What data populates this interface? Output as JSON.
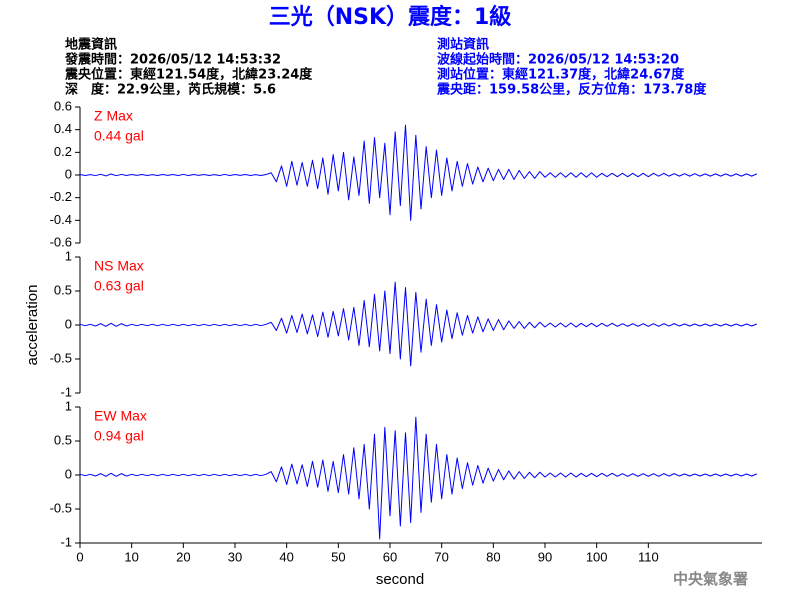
{
  "header": {
    "title": "三光（NSK）震度：1級",
    "quake_info": [
      "地震資訊",
      "發震時間：2026/05/12 14:53:32",
      "震央位置：東經121.54度，北緯23.24度",
      "深　度：22.9公里，芮氏規模：5.6"
    ],
    "station_info": [
      "測站資訊",
      "波線起始時間：2026/05/12 14:53:20",
      "測站位置：東經121.37度，北緯24.67度",
      "震央距：159.58公里，反方位角：173.78度"
    ],
    "footer": "中央氣象署"
  },
  "chart_data": {
    "type": "line",
    "xlabel": "second",
    "ylabel": "acceleration",
    "xlim": [
      0,
      132
    ],
    "xticks": [
      0,
      10,
      20,
      30,
      40,
      50,
      60,
      70,
      80,
      90,
      100,
      110
    ],
    "x": [
      0,
      1,
      2,
      3,
      4,
      5,
      6,
      7,
      8,
      9,
      10,
      11,
      12,
      13,
      14,
      15,
      16,
      17,
      18,
      19,
      20,
      21,
      22,
      23,
      24,
      25,
      26,
      27,
      28,
      29,
      30,
      31,
      32,
      33,
      34,
      35,
      36,
      37,
      38,
      39,
      40,
      41,
      42,
      43,
      44,
      45,
      46,
      47,
      48,
      49,
      50,
      51,
      52,
      53,
      54,
      55,
      56,
      57,
      58,
      59,
      60,
      61,
      62,
      63,
      64,
      65,
      66,
      67,
      68,
      69,
      70,
      71,
      72,
      73,
      74,
      75,
      76,
      77,
      78,
      79,
      80,
      81,
      82,
      83,
      84,
      85,
      86,
      87,
      88,
      89,
      90,
      91,
      92,
      93,
      94,
      95,
      96,
      97,
      98,
      99,
      100,
      101,
      102,
      103,
      104,
      105,
      106,
      107,
      108,
      109,
      110,
      111,
      112,
      113,
      114,
      115,
      116,
      117,
      118,
      119,
      120,
      121,
      122,
      123,
      124,
      125,
      126,
      127,
      128,
      129,
      130,
      131
    ],
    "series": [
      {
        "name": "Z Max",
        "max_label": "0.44 gal",
        "color": "#0000ff",
        "ylim": [
          -0.6,
          0.6
        ],
        "yticks": [
          -0.6,
          -0.4,
          -0.2,
          0,
          0.2,
          0.4,
          0.6
        ],
        "values": [
          0.004,
          -0.004,
          0.003,
          -0.005,
          0.006,
          -0.008,
          0.009,
          -0.006,
          0.005,
          -0.004,
          0.004,
          -0.003,
          0.004,
          -0.004,
          0.003,
          -0.004,
          0.004,
          -0.003,
          0.004,
          -0.004,
          0.005,
          -0.004,
          0.004,
          -0.003,
          0.004,
          -0.004,
          0.003,
          -0.004,
          0.005,
          -0.004,
          0.004,
          -0.003,
          0.004,
          -0.004,
          0.003,
          -0.004,
          0.004,
          0.02,
          -0.06,
          0.08,
          -0.1,
          0.12,
          -0.09,
          0.11,
          -0.1,
          0.13,
          -0.12,
          0.15,
          -0.17,
          0.18,
          -0.14,
          0.2,
          -0.22,
          0.16,
          -0.18,
          0.3,
          -0.25,
          0.33,
          -0.2,
          0.28,
          -0.35,
          0.38,
          -0.27,
          0.44,
          -0.4,
          0.35,
          -0.3,
          0.25,
          -0.2,
          0.22,
          -0.18,
          0.15,
          -0.14,
          0.12,
          -0.1,
          0.1,
          -0.08,
          0.07,
          -0.06,
          0.06,
          -0.05,
          0.05,
          -0.04,
          0.05,
          -0.04,
          0.04,
          -0.03,
          0.03,
          -0.03,
          0.03,
          -0.02,
          0.02,
          -0.02,
          0.02,
          -0.02,
          0.02,
          -0.02,
          0.02,
          -0.02,
          0.02,
          -0.02,
          0.015,
          -0.015,
          0.015,
          -0.015,
          0.015,
          -0.015,
          0.015,
          -0.015,
          0.015,
          -0.015,
          0.015,
          -0.01,
          0.015,
          -0.01,
          0.012,
          -0.01,
          0.012,
          -0.01,
          0.012,
          -0.01,
          0.01,
          -0.01,
          0.01,
          -0.01,
          0.01,
          -0.01,
          0.01,
          -0.01,
          0.01,
          -0.01,
          0.01
        ]
      },
      {
        "name": "NS Max",
        "max_label": "0.63 gal",
        "color": "#0000ff",
        "ylim": [
          -1,
          1
        ],
        "yticks": [
          -1,
          -0.5,
          0,
          0.5,
          1
        ],
        "values": [
          0.01,
          -0.01,
          0.01,
          -0.015,
          0.02,
          -0.02,
          0.025,
          -0.02,
          0.02,
          -0.015,
          0.01,
          -0.01,
          0.01,
          -0.01,
          0.01,
          -0.01,
          0.01,
          -0.01,
          0.01,
          -0.01,
          0.01,
          -0.01,
          0.01,
          -0.01,
          0.01,
          -0.01,
          0.01,
          -0.01,
          0.01,
          -0.01,
          0.01,
          -0.01,
          0.01,
          -0.01,
          0.01,
          -0.01,
          0.01,
          0.04,
          -0.08,
          0.1,
          -0.12,
          0.14,
          -0.11,
          0.16,
          -0.13,
          0.15,
          -0.17,
          0.19,
          -0.18,
          0.2,
          -0.16,
          0.24,
          -0.22,
          0.26,
          -0.3,
          0.36,
          -0.32,
          0.45,
          -0.38,
          0.5,
          -0.42,
          0.63,
          -0.5,
          0.55,
          -0.6,
          0.48,
          -0.4,
          0.38,
          -0.3,
          0.3,
          -0.25,
          0.22,
          -0.2,
          0.18,
          -0.15,
          0.14,
          -0.12,
          0.12,
          -0.1,
          0.09,
          -0.08,
          0.08,
          -0.07,
          0.06,
          -0.05,
          0.05,
          -0.05,
          0.04,
          -0.04,
          0.04,
          -0.03,
          0.03,
          -0.03,
          0.03,
          -0.03,
          0.03,
          -0.03,
          0.025,
          -0.025,
          0.025,
          -0.025,
          0.025,
          -0.02,
          0.025,
          -0.02,
          0.02,
          -0.02,
          0.02,
          -0.02,
          0.02,
          -0.02,
          0.02,
          -0.02,
          0.02,
          -0.015,
          0.02,
          -0.015,
          0.015,
          -0.015,
          0.015,
          -0.015,
          0.015,
          -0.015,
          0.015,
          -0.015,
          0.015,
          -0.015,
          0.015,
          -0.015,
          0.015,
          -0.015,
          0.015
        ]
      },
      {
        "name": "EW Max",
        "max_label": "0.94 gal",
        "color": "#0000ff",
        "ylim": [
          -1,
          1
        ],
        "yticks": [
          -1,
          -0.5,
          0,
          0.5,
          1
        ],
        "values": [
          0.01,
          -0.01,
          0.01,
          -0.015,
          0.02,
          -0.02,
          0.025,
          -0.02,
          0.02,
          -0.015,
          0.01,
          -0.01,
          0.01,
          -0.01,
          0.01,
          -0.01,
          0.01,
          -0.01,
          0.01,
          -0.01,
          0.01,
          -0.01,
          0.01,
          -0.01,
          0.01,
          -0.01,
          0.01,
          -0.01,
          0.01,
          -0.01,
          0.01,
          -0.01,
          0.01,
          -0.01,
          0.01,
          -0.01,
          0.01,
          0.05,
          -0.1,
          0.12,
          -0.14,
          0.16,
          -0.13,
          0.15,
          -0.17,
          0.2,
          -0.18,
          0.22,
          -0.24,
          0.2,
          -0.26,
          0.3,
          -0.28,
          0.4,
          -0.35,
          0.45,
          -0.5,
          0.6,
          -0.94,
          0.7,
          -0.6,
          0.65,
          -0.75,
          0.62,
          -0.7,
          0.85,
          -0.55,
          0.6,
          -0.4,
          0.45,
          -0.35,
          0.3,
          -0.28,
          0.25,
          -0.2,
          0.18,
          -0.15,
          0.14,
          -0.12,
          0.1,
          -0.09,
          0.08,
          -0.07,
          0.06,
          -0.06,
          0.05,
          -0.05,
          0.04,
          -0.04,
          0.04,
          -0.03,
          0.03,
          -0.03,
          0.03,
          -0.03,
          0.03,
          -0.03,
          0.025,
          -0.025,
          0.025,
          -0.025,
          0.025,
          -0.02,
          0.025,
          -0.02,
          0.02,
          -0.02,
          0.02,
          -0.02,
          0.02,
          -0.02,
          0.02,
          -0.02,
          0.02,
          -0.015,
          0.02,
          -0.015,
          0.015,
          -0.015,
          0.015,
          -0.015,
          0.015,
          -0.015,
          0.015,
          -0.015,
          0.015,
          -0.015,
          0.015,
          -0.015,
          0.015,
          -0.015,
          0.015
        ]
      }
    ]
  }
}
